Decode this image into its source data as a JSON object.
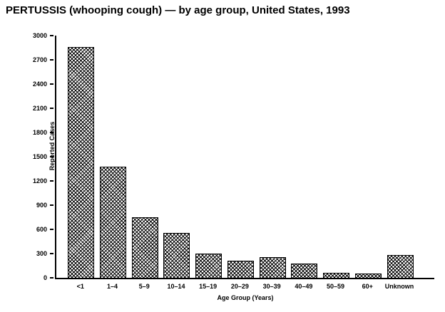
{
  "chart_data": {
    "type": "bar",
    "title": "PERTUSSIS (whooping cough) — by age group, United States, 1993",
    "xlabel": "Age Group (Years)",
    "ylabel": "Reported Cases",
    "categories": [
      "<1",
      "1–4",
      "5–9",
      "10–14",
      "15–19",
      "20–29",
      "30–39",
      "40–49",
      "50–59",
      "60+",
      "Unknown"
    ],
    "values": [
      2850,
      1370,
      740,
      550,
      290,
      200,
      250,
      170,
      55,
      45,
      270
    ],
    "ylim": [
      0,
      3000
    ],
    "yticks": [
      0,
      300,
      600,
      900,
      1200,
      1500,
      1800,
      2100,
      2400,
      2700,
      3000
    ],
    "grid": false,
    "legend": "none",
    "bar_fill_style": "crosshatch",
    "colors": {
      "bar_outline": "#000000",
      "bar_hatch": "#000000",
      "background": "#ffffff",
      "text": "#000000"
    }
  }
}
